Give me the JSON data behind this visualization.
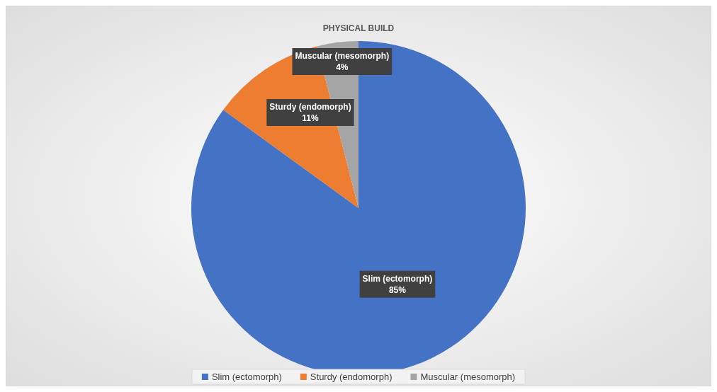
{
  "chart_data": {
    "type": "pie",
    "title": "PHYSICAL BUILD",
    "categories": [
      "Slim (ectomorph)",
      "Sturdy (endomorph)",
      "Muscular (mesomorph)"
    ],
    "values": [
      85,
      11,
      4
    ],
    "colors": [
      "#4472c4",
      "#ed7d31",
      "#a5a5a5"
    ],
    "value_labels": [
      "85%",
      "11%",
      "4%"
    ],
    "legend": "bottom"
  }
}
